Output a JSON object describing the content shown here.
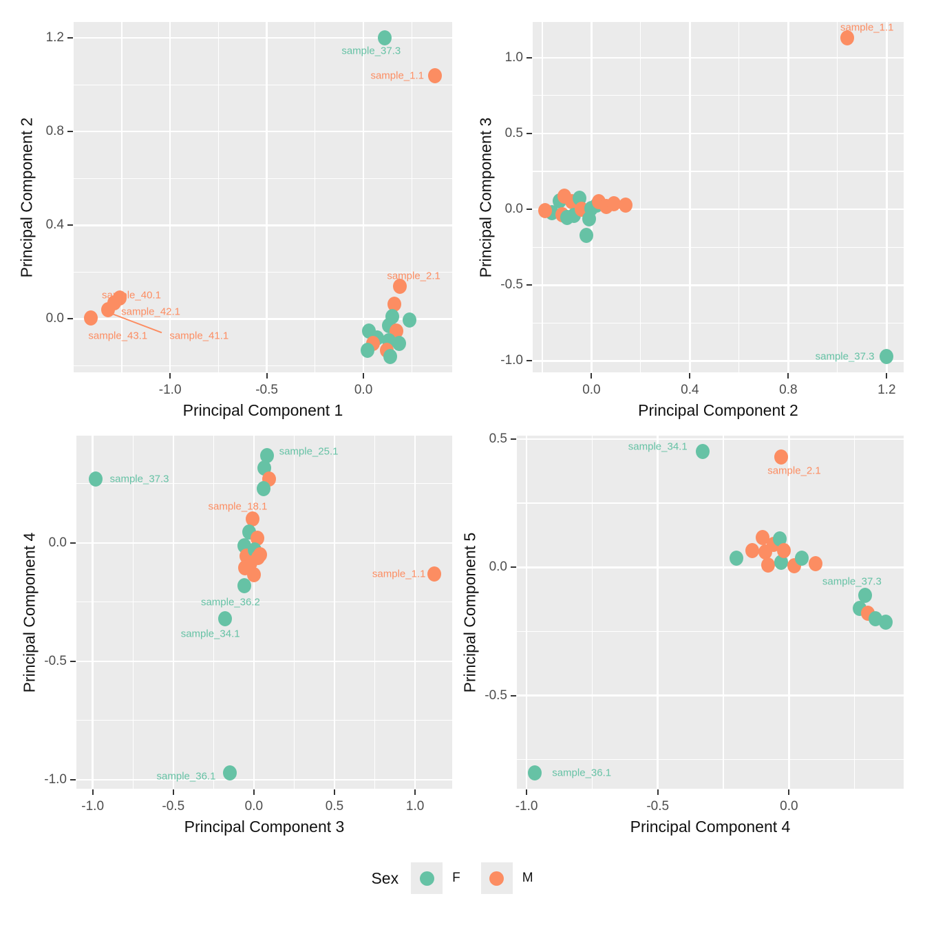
{
  "palette": {
    "F": "#66C2A5",
    "M": "#FC8D62"
  },
  "theme": {
    "panel_background": "#EBEBEB",
    "gridline_color": "#FFFFFF",
    "tick_text_color": "#4D4D4D",
    "axis_title_color": "#111111"
  },
  "legend": {
    "title": "Sex",
    "entries": [
      {
        "label": "F",
        "color": "#66C2A5"
      },
      {
        "label": "M",
        "color": "#FC8D62"
      }
    ]
  },
  "chart_data": [
    {
      "type": "scatter",
      "xlabel": "Principal Component 1",
      "ylabel": "Principal Component 2",
      "xlim": [
        -1.499,
        0.459
      ],
      "ylim": [
        -0.228,
        1.268
      ],
      "grid": true,
      "xticks": {
        "values": [
          -1.0,
          -0.5,
          0.0
        ],
        "labels": [
          "-1.0",
          "-0.5",
          "0.0"
        ]
      },
      "yticks": {
        "values": [
          0.0,
          0.4,
          0.8,
          1.2
        ],
        "labels": [
          "0.0",
          "0.4",
          "0.8",
          "1.2"
        ]
      },
      "points": [
        {
          "x": -1.41,
          "y": 0.005,
          "s": "M"
        },
        {
          "x": -1.32,
          "y": 0.04,
          "s": "M"
        },
        {
          "x": -1.29,
          "y": 0.068,
          "s": "M"
        },
        {
          "x": -1.26,
          "y": 0.09,
          "s": "M"
        },
        {
          "x": 0.11,
          "y": 1.2,
          "s": "F"
        },
        {
          "x": 0.37,
          "y": 1.04,
          "s": "M"
        },
        {
          "x": 0.19,
          "y": 0.14,
          "s": "M"
        },
        {
          "x": 0.16,
          "y": 0.062,
          "s": "M"
        },
        {
          "x": 0.15,
          "y": 0.01,
          "s": "F"
        },
        {
          "x": 0.24,
          "y": -0.005,
          "s": "F"
        },
        {
          "x": 0.13,
          "y": -0.029,
          "s": "F"
        },
        {
          "x": 0.03,
          "y": -0.053,
          "s": "F"
        },
        {
          "x": 0.17,
          "y": -0.053,
          "s": "M"
        },
        {
          "x": 0.07,
          "y": -0.08,
          "s": "F"
        },
        {
          "x": 0.13,
          "y": -0.092,
          "s": "F"
        },
        {
          "x": 0.05,
          "y": -0.106,
          "s": "M"
        },
        {
          "x": 0.185,
          "y": -0.106,
          "s": "F"
        },
        {
          "x": 0.12,
          "y": -0.135,
          "s": "M"
        },
        {
          "x": 0.02,
          "y": -0.135,
          "s": "F"
        },
        {
          "x": 0.14,
          "y": -0.159,
          "s": "F"
        }
      ],
      "labels": [
        {
          "text": "sample_37.3",
          "x": 0.04,
          "y": 1.145,
          "s": "F"
        },
        {
          "text": "sample_1.1",
          "x": 0.175,
          "y": 1.04,
          "s": "M"
        },
        {
          "text": "sample_40.1",
          "x": -1.2,
          "y": 0.1,
          "s": "M"
        },
        {
          "text": "sample_42.1",
          "x": -1.1,
          "y": 0.031,
          "s": "M"
        },
        {
          "text": "sample_43.1",
          "x": -1.27,
          "y": -0.072,
          "s": "M"
        },
        {
          "text": "sample_41.1",
          "x": -0.85,
          "y": -0.072,
          "s": "M"
        },
        {
          "text": "sample_2.1",
          "x": 0.26,
          "y": 0.184,
          "s": "M"
        }
      ],
      "leaders": [
        {
          "x1": -1.3,
          "y1": 0.022,
          "x2": -1.045,
          "y2": -0.058,
          "s": "M"
        }
      ]
    },
    {
      "type": "scatter",
      "xlabel": "Principal Component 2",
      "ylabel": "Principal Component 3",
      "xlim": [
        -0.239,
        1.269
      ],
      "ylim": [
        -1.075,
        1.235
      ],
      "grid": true,
      "xticks": {
        "values": [
          0.0,
          0.4,
          0.8,
          1.2
        ],
        "labels": [
          "0.0",
          "0.4",
          "0.8",
          "1.2"
        ]
      },
      "yticks": {
        "values": [
          -1.0,
          -0.5,
          0.0,
          0.5,
          1.0
        ],
        "labels": [
          "-1.0",
          "-0.5",
          "0.0",
          "0.5",
          "1.0"
        ]
      },
      "points": [
        {
          "x": 1.04,
          "y": 1.13,
          "s": "M"
        },
        {
          "x": 1.2,
          "y": -0.97,
          "s": "F"
        },
        {
          "x": -0.13,
          "y": 0.055,
          "s": "F"
        },
        {
          "x": -0.11,
          "y": 0.085,
          "s": "M"
        },
        {
          "x": -0.08,
          "y": 0.05,
          "s": "M"
        },
        {
          "x": -0.05,
          "y": 0.075,
          "s": "F"
        },
        {
          "x": -0.16,
          "y": -0.02,
          "s": "F"
        },
        {
          "x": -0.19,
          "y": -0.01,
          "s": "M"
        },
        {
          "x": -0.12,
          "y": -0.035,
          "s": "M"
        },
        {
          "x": -0.07,
          "y": -0.04,
          "s": "F"
        },
        {
          "x": -0.04,
          "y": 0.0,
          "s": "M"
        },
        {
          "x": 0.0,
          "y": 0.005,
          "s": "F"
        },
        {
          "x": -0.1,
          "y": -0.055,
          "s": "F"
        },
        {
          "x": -0.01,
          "y": -0.065,
          "s": "F"
        },
        {
          "x": 0.02,
          "y": 0.03,
          "s": "F"
        },
        {
          "x": 0.03,
          "y": 0.05,
          "s": "M"
        },
        {
          "x": 0.06,
          "y": 0.02,
          "s": "M"
        },
        {
          "x": 0.09,
          "y": 0.035,
          "s": "M"
        },
        {
          "x": 0.14,
          "y": 0.03,
          "s": "M"
        },
        {
          "x": -0.02,
          "y": -0.17,
          "s": "F"
        }
      ],
      "labels": [
        {
          "text": "sample_1.1",
          "x": 1.12,
          "y": 1.2,
          "s": "M"
        },
        {
          "text": "sample_37.3",
          "x": 1.03,
          "y": -0.97,
          "s": "F"
        }
      ],
      "leaders": []
    },
    {
      "type": "scatter",
      "xlabel": "Principal Component 3",
      "ylabel": "Principal Component 4",
      "xlim": [
        -1.101,
        1.23
      ],
      "ylim": [
        -1.038,
        0.453
      ],
      "grid": true,
      "xticks": {
        "values": [
          -1.0,
          -0.5,
          0.0,
          0.5,
          1.0
        ],
        "labels": [
          "-1.0",
          "-0.5",
          "0.0",
          "0.5",
          "1.0"
        ]
      },
      "yticks": {
        "values": [
          -1.0,
          -0.5,
          0.0
        ],
        "labels": [
          "-1.0",
          "-0.5",
          "0.0"
        ]
      },
      "points": [
        {
          "x": -0.98,
          "y": 0.27,
          "s": "F"
        },
        {
          "x": 0.08,
          "y": 0.37,
          "s": "F"
        },
        {
          "x": 0.063,
          "y": 0.315,
          "s": "F"
        },
        {
          "x": 0.094,
          "y": 0.27,
          "s": "M"
        },
        {
          "x": 0.059,
          "y": 0.23,
          "s": "F"
        },
        {
          "x": -0.01,
          "y": 0.1,
          "s": "M"
        },
        {
          "x": -0.03,
          "y": 0.045,
          "s": "F"
        },
        {
          "x": 0.02,
          "y": 0.02,
          "s": "M"
        },
        {
          "x": -0.06,
          "y": -0.012,
          "s": "F"
        },
        {
          "x": -0.045,
          "y": -0.055,
          "s": "M"
        },
        {
          "x": 0.005,
          "y": -0.03,
          "s": "F"
        },
        {
          "x": 0.025,
          "y": -0.06,
          "s": "M"
        },
        {
          "x": 0.04,
          "y": -0.05,
          "s": "M"
        },
        {
          "x": -0.02,
          "y": -0.085,
          "s": "M"
        },
        {
          "x": -0.055,
          "y": -0.105,
          "s": "M"
        },
        {
          "x": 0.0,
          "y": -0.135,
          "s": "M"
        },
        {
          "x": 1.12,
          "y": -0.13,
          "s": "M"
        },
        {
          "x": -0.06,
          "y": -0.18,
          "s": "F"
        },
        {
          "x": -0.18,
          "y": -0.32,
          "s": "F"
        },
        {
          "x": -0.15,
          "y": -0.97,
          "s": "F"
        }
      ],
      "labels": [
        {
          "text": "sample_25.1",
          "x": 0.34,
          "y": 0.385,
          "s": "F"
        },
        {
          "text": "sample_37.3",
          "x": -0.71,
          "y": 0.27,
          "s": "F"
        },
        {
          "text": "sample_18.1",
          "x": -0.1,
          "y": 0.155,
          "s": "M"
        },
        {
          "text": "sample_1.1",
          "x": 0.9,
          "y": -0.13,
          "s": "M"
        },
        {
          "text": "sample_36.2",
          "x": -0.145,
          "y": -0.25,
          "s": "F"
        },
        {
          "text": "sample_34.1",
          "x": -0.27,
          "y": -0.385,
          "s": "F"
        },
        {
          "text": "sample_36.1",
          "x": -0.42,
          "y": -0.985,
          "s": "F"
        }
      ],
      "leaders": []
    },
    {
      "type": "scatter",
      "xlabel": "Principal Component 4",
      "ylabel": "Principal Component 5",
      "xlim": [
        -1.037,
        0.437
      ],
      "ylim": [
        -0.863,
        0.513
      ],
      "grid": true,
      "xticks": {
        "values": [
          -1.0,
          -0.5,
          0.0
        ],
        "labels": [
          "-1.0",
          "-0.5",
          "0.0"
        ]
      },
      "yticks": {
        "values": [
          -0.5,
          0.0,
          0.5
        ],
        "labels": [
          "-0.5",
          "0.0",
          "0.5"
        ]
      },
      "points": [
        {
          "x": -0.33,
          "y": 0.45,
          "s": "F"
        },
        {
          "x": -0.03,
          "y": 0.43,
          "s": "M"
        },
        {
          "x": -0.2,
          "y": 0.035,
          "s": "F"
        },
        {
          "x": -0.14,
          "y": 0.065,
          "s": "M"
        },
        {
          "x": -0.1,
          "y": 0.115,
          "s": "M"
        },
        {
          "x": -0.09,
          "y": 0.06,
          "s": "M"
        },
        {
          "x": -0.06,
          "y": 0.09,
          "s": "M"
        },
        {
          "x": -0.035,
          "y": 0.11,
          "s": "F"
        },
        {
          "x": -0.08,
          "y": 0.01,
          "s": "M"
        },
        {
          "x": -0.03,
          "y": 0.02,
          "s": "F"
        },
        {
          "x": -0.02,
          "y": 0.065,
          "s": "M"
        },
        {
          "x": 0.02,
          "y": 0.005,
          "s": "M"
        },
        {
          "x": 0.05,
          "y": 0.035,
          "s": "F"
        },
        {
          "x": 0.1,
          "y": 0.015,
          "s": "M"
        },
        {
          "x": 0.29,
          "y": -0.11,
          "s": "F"
        },
        {
          "x": 0.27,
          "y": -0.16,
          "s": "F"
        },
        {
          "x": 0.3,
          "y": -0.18,
          "s": "M"
        },
        {
          "x": 0.33,
          "y": -0.2,
          "s": "F"
        },
        {
          "x": 0.37,
          "y": -0.215,
          "s": "F"
        },
        {
          "x": -0.97,
          "y": -0.8,
          "s": "F"
        }
      ],
      "labels": [
        {
          "text": "sample_34.1",
          "x": -0.5,
          "y": 0.47,
          "s": "F"
        },
        {
          "text": "sample_2.1",
          "x": 0.02,
          "y": 0.375,
          "s": "M"
        },
        {
          "text": "sample_37.3",
          "x": 0.24,
          "y": -0.055,
          "s": "F"
        },
        {
          "text": "sample_36.1",
          "x": -0.79,
          "y": -0.8,
          "s": "F"
        }
      ],
      "leaders": []
    }
  ]
}
